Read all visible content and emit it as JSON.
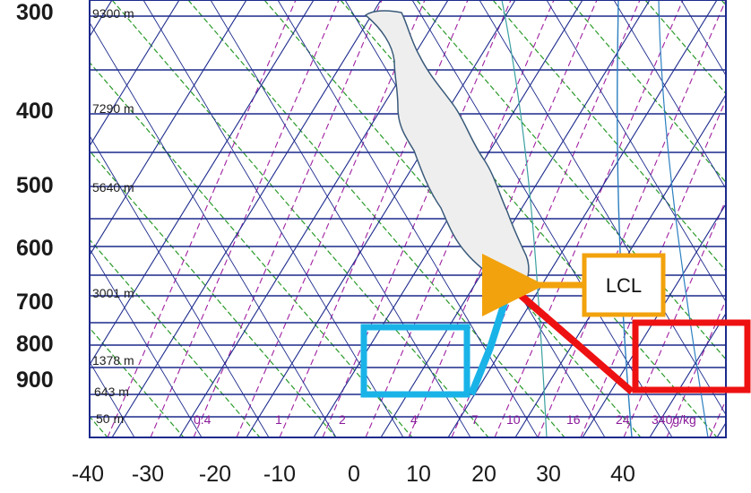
{
  "pressure_labels": [
    "300",
    "400",
    "500",
    "600",
    "700",
    "800",
    "900"
  ],
  "temperature_labels": [
    "-40",
    "-30",
    "-20",
    "-10",
    "0",
    "10",
    "20",
    "30",
    "40"
  ],
  "altitude_labels": [
    "9300 m",
    "7290 m",
    "5640 m",
    "3001 m",
    "1378 m",
    "643 m",
    "50 m"
  ],
  "mixing_ratio_labels": [
    "0.4",
    "1",
    "2",
    "4",
    "7",
    "10",
    "16",
    "24",
    "340g/kg"
  ],
  "lcl_label": "LCL",
  "colors": {
    "grid": "#1c2a8c",
    "dry_adiabat": "#2a9a2a",
    "mixing_ratio": "#a020a0",
    "cloud_fill": "#eeeeee",
    "cloud_outline": "#3a5a7a",
    "dewpoint_path": "#19b3e8",
    "temperature_path": "#ee1111",
    "lcl_box": "#f2a20c"
  }
}
